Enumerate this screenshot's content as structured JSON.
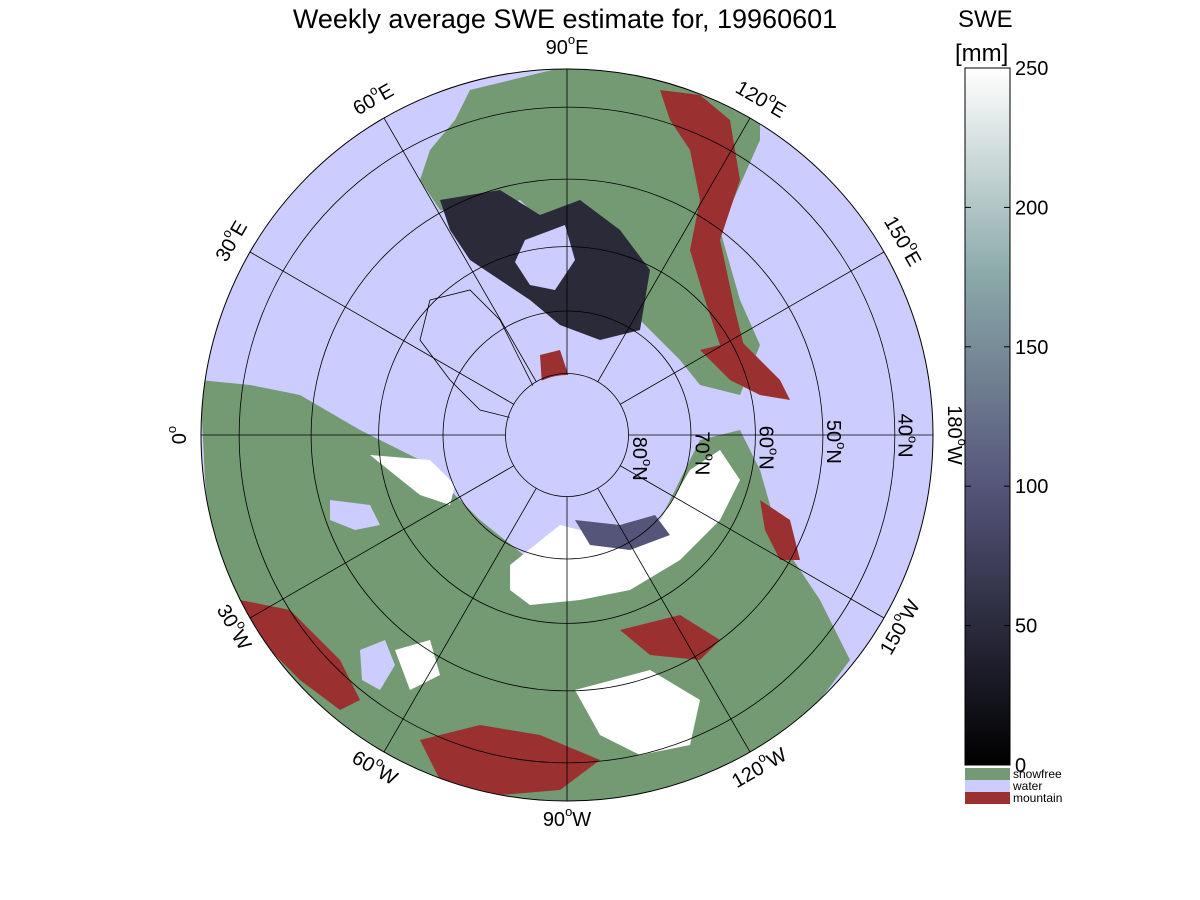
{
  "title": "Weekly average SWE estimate for, 19960601",
  "colorbar": {
    "label_line1": "SWE",
    "label_line2": "[mm]",
    "ticks": [
      "0",
      "50",
      "100",
      "150",
      "200",
      "250"
    ],
    "tick_values": [
      0,
      50,
      100,
      150,
      200,
      250
    ],
    "range": [
      0,
      250
    ],
    "colors": {
      "low": "#000000",
      "mid": "#55557a",
      "high": "#ffffff"
    },
    "categories": [
      {
        "label": "snowfree",
        "color": "#739a72"
      },
      {
        "label": "water",
        "color": "#ccccff"
      },
      {
        "label": "mountain",
        "color": "#9a3030"
      }
    ]
  },
  "map": {
    "projection": "polar stereographic",
    "longitude_labels": [
      {
        "sup": "0",
        "text": "0",
        "suffix": "",
        "lon": 0
      },
      {
        "sup": "o",
        "text": "30",
        "suffix": "W",
        "lon": -30
      },
      {
        "sup": "o",
        "text": "60",
        "suffix": "W",
        "lon": -60
      },
      {
        "sup": "o",
        "text": "90",
        "suffix": "W",
        "lon": -90
      },
      {
        "sup": "o",
        "text": "120",
        "suffix": "W",
        "lon": -120
      },
      {
        "sup": "o",
        "text": "150",
        "suffix": "W",
        "lon": -150
      },
      {
        "sup": "o",
        "text": "180",
        "suffix": "W",
        "lon": 180
      },
      {
        "sup": "o",
        "text": "150",
        "suffix": "E",
        "lon": 150
      },
      {
        "sup": "o",
        "text": "120",
        "suffix": "E",
        "lon": 120
      },
      {
        "sup": "o",
        "text": "90",
        "suffix": "E",
        "lon": 90
      },
      {
        "sup": "o",
        "text": "60",
        "suffix": "E",
        "lon": 60
      },
      {
        "sup": "o",
        "text": "30",
        "suffix": "E",
        "lon": 30
      }
    ],
    "latitude_labels": [
      "80",
      "70",
      "60",
      "50",
      "40"
    ],
    "latitude_suffix": "N",
    "colors": {
      "water": "#ccccff",
      "land": "#739a72",
      "mountain": "#9a3030",
      "snow_deep": "#ffffff",
      "snow_shallow": "#2a2a38",
      "snow_mid": "#55557a",
      "grid": "#000000"
    }
  }
}
